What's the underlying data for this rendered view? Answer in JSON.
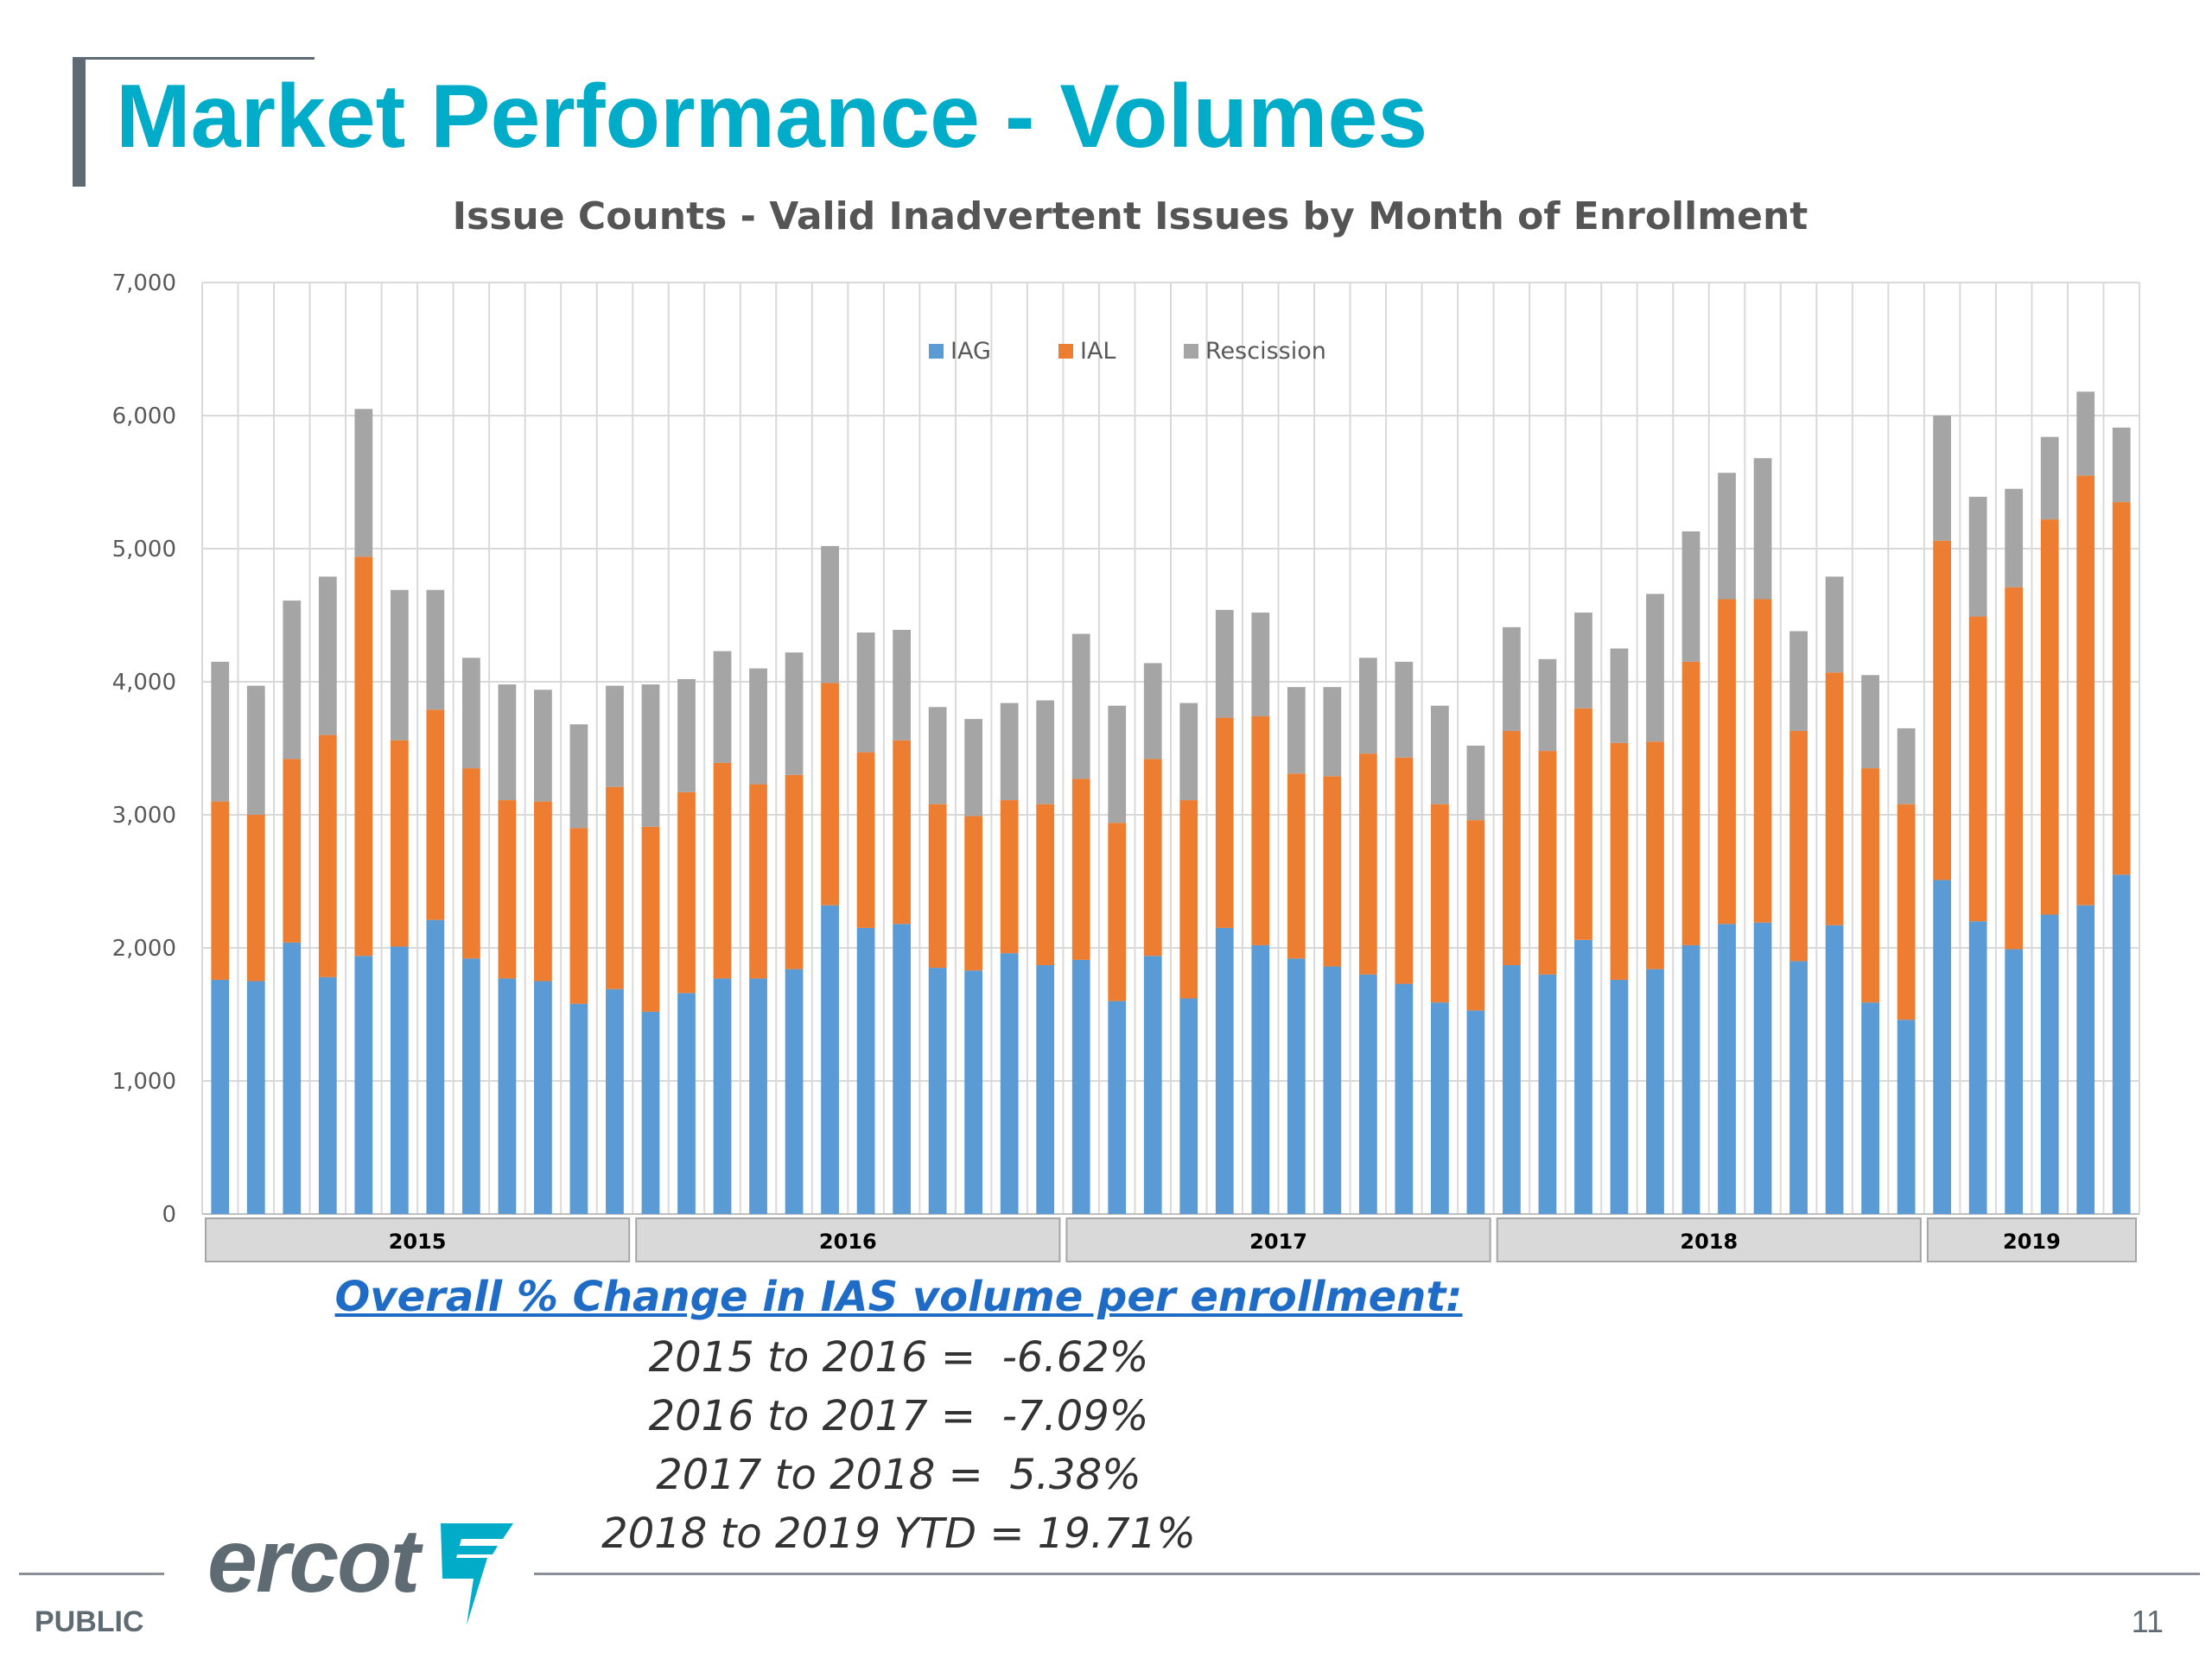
{
  "slide": {
    "title": "Market Performance - Volumes",
    "classification": "PUBLIC",
    "page_number": "11",
    "logo_text": "ercot"
  },
  "notes": {
    "heading": "Overall % Change in IAS volume per enrollment:",
    "lines": [
      "2015 to 2016 =  -6.62%",
      "2016 to 2017 =  -7.09%",
      "2017 to 2018 =  5.38%",
      "2018 to 2019 YTD = 19.71%"
    ]
  },
  "chart_data": {
    "type": "bar",
    "stacked": true,
    "title": "Issue Counts -  Valid Inadvertent Issues by Month of Enrollment",
    "xlabel": "",
    "ylabel": "",
    "ylim": [
      0,
      7000
    ],
    "yticks": [
      0,
      1000,
      2000,
      3000,
      4000,
      5000,
      6000,
      7000
    ],
    "ytick_labels": [
      "0",
      "1,000",
      "2,000",
      "3,000",
      "4,000",
      "5,000",
      "6,000",
      "7,000"
    ],
    "grid": true,
    "legend_position": "top-center",
    "colors": {
      "IAG": "#5b9bd5",
      "IAL": "#ed7d31",
      "Rescission": "#a5a5a5"
    },
    "year_groups": [
      {
        "label": "2015",
        "count": 12
      },
      {
        "label": "2016",
        "count": 12
      },
      {
        "label": "2017",
        "count": 12
      },
      {
        "label": "2018",
        "count": 12
      },
      {
        "label": "2019",
        "count": 6
      }
    ],
    "series": [
      {
        "name": "IAG",
        "values": [
          1760,
          1750,
          2040,
          1780,
          1940,
          2010,
          2210,
          1920,
          1770,
          1750,
          1580,
          1690,
          1520,
          1660,
          1770,
          1770,
          1840,
          2320,
          2150,
          2180,
          1850,
          1830,
          1960,
          1870,
          1910,
          1600,
          1940,
          1620,
          2150,
          2020,
          1920,
          1860,
          1800,
          1730,
          1590,
          1530,
          1870,
          1800,
          2060,
          1760,
          1840,
          2020,
          2180,
          2190,
          1900,
          2170,
          1590,
          1460,
          2510,
          2200,
          1990,
          2250,
          2320,
          2550
        ]
      },
      {
        "name": "IAL",
        "values": [
          1340,
          1250,
          1380,
          1820,
          3000,
          1550,
          1580,
          1430,
          1340,
          1350,
          1320,
          1520,
          1390,
          1510,
          1620,
          1460,
          1460,
          1670,
          1320,
          1380,
          1230,
          1160,
          1150,
          1210,
          1360,
          1340,
          1480,
          1490,
          1580,
          1720,
          1390,
          1430,
          1660,
          1700,
          1490,
          1430,
          1760,
          1680,
          1740,
          1780,
          1710,
          2130,
          2440,
          2430,
          1730,
          1900,
          1760,
          1620,
          2550,
          2290,
          2720,
          2970,
          3230,
          2800
        ]
      },
      {
        "name": "Rescission",
        "values": [
          1050,
          970,
          1190,
          1190,
          1110,
          1130,
          900,
          830,
          870,
          840,
          780,
          760,
          1070,
          850,
          840,
          870,
          920,
          1030,
          900,
          830,
          730,
          730,
          730,
          780,
          1090,
          880,
          720,
          730,
          810,
          780,
          650,
          670,
          720,
          720,
          740,
          560,
          780,
          690,
          720,
          710,
          1110,
          980,
          950,
          1060,
          750,
          720,
          700,
          570,
          940,
          900,
          740,
          620,
          630,
          560
        ]
      }
    ]
  }
}
